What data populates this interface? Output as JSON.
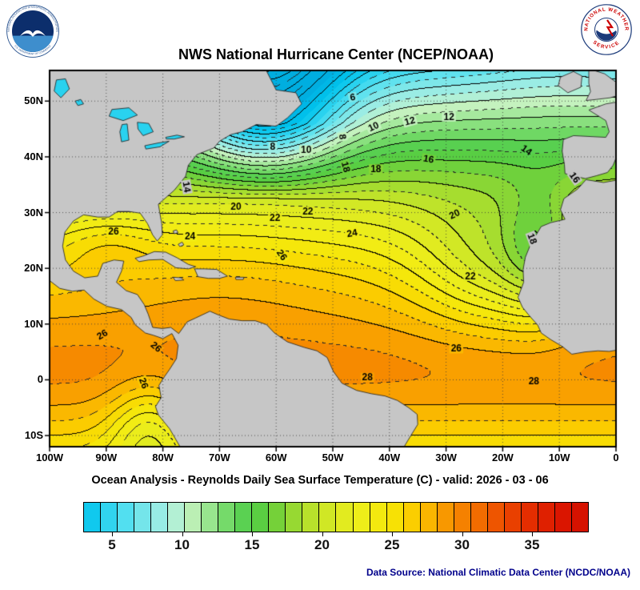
{
  "logos": {
    "noaa": {
      "ring_top": "NATIONAL OCEANIC AND ATMOSPHERIC ADMINISTRATION",
      "ring_bottom": "U.S. DEPARTMENT OF COMMERCE"
    },
    "nws": {
      "ring_top": "NATIONAL WEATHER",
      "ring_bottom": "SERVICE"
    }
  },
  "header": {
    "title": "NWS National Hurricane Center (NCEP/NOAA)"
  },
  "subtitle": "Ocean Analysis - Reynolds Daily Sea Surface Temperature (C) - valid: 2026 - 03 - 06",
  "footer": {
    "data_source": "Data Source: National Climatic Data Center (NCDC/NOAA)",
    "color": "#00008B"
  },
  "chart_data": {
    "type": "heatmap",
    "title": "NWS National Hurricane Center (NCEP/NOAA)",
    "subtitle": "Ocean Analysis - Reynolds Daily Sea Surface Temperature (C) - valid: 2026 - 03 - 06",
    "units": "C",
    "valid_date": "2026 - 03 - 06",
    "projection": {
      "lon_min": -100,
      "lon_max": 0,
      "lat_min": -12,
      "lat_max": 55.5
    },
    "grid_step_deg": 10,
    "contour_interval": 2,
    "x_axis": [
      {
        "label": "100W",
        "value": -100
      },
      {
        "label": "90W",
        "value": -90
      },
      {
        "label": "80W",
        "value": -80
      },
      {
        "label": "70W",
        "value": -70
      },
      {
        "label": "60W",
        "value": -60
      },
      {
        "label": "50W",
        "value": -50
      },
      {
        "label": "40W",
        "value": -40
      },
      {
        "label": "30W",
        "value": -30
      },
      {
        "label": "20W",
        "value": -20
      },
      {
        "label": "10W",
        "value": -10
      },
      {
        "label": "0",
        "value": 0
      }
    ],
    "y_axis": [
      {
        "label": "50N",
        "value": 50
      },
      {
        "label": "40N",
        "value": 40
      },
      {
        "label": "30N",
        "value": 30
      },
      {
        "label": "20N",
        "value": 20
      },
      {
        "label": "10N",
        "value": 10
      },
      {
        "label": "0",
        "value": 0
      },
      {
        "label": "10S",
        "value": -10
      }
    ],
    "contour_labels": [
      {
        "v": 6,
        "lon": -46.5,
        "lat": 50.7,
        "rot": -10
      },
      {
        "v": 10,
        "lon": -42.8,
        "lat": 45.4,
        "rot": -25
      },
      {
        "v": 12,
        "lon": -36.4,
        "lat": 46.4,
        "rot": -15
      },
      {
        "v": 12,
        "lon": -29.5,
        "lat": 47.2,
        "rot": 0
      },
      {
        "v": 8,
        "lon": -60.6,
        "lat": 41.8,
        "rot": 0
      },
      {
        "v": 10,
        "lon": -54.7,
        "lat": 41.2,
        "rot": 0
      },
      {
        "v": 8,
        "lon": -48.3,
        "lat": 43.6,
        "rot": 80
      },
      {
        "v": 18,
        "lon": -47.7,
        "lat": 38.2,
        "rot": 75
      },
      {
        "v": 18,
        "lon": -42.4,
        "lat": 37.8,
        "rot": 0
      },
      {
        "v": 16,
        "lon": -33.1,
        "lat": 39.6,
        "rot": 10
      },
      {
        "v": 14,
        "lon": -15.8,
        "lat": 41.2,
        "rot": 35
      },
      {
        "v": 16,
        "lon": -7.3,
        "lat": 36.3,
        "rot": 55
      },
      {
        "v": 14,
        "lon": -75.8,
        "lat": 34.6,
        "rot": 80
      },
      {
        "v": 20,
        "lon": -67.1,
        "lat": 31.0,
        "rot": 0
      },
      {
        "v": 22,
        "lon": -60.2,
        "lat": 29.0,
        "rot": 0
      },
      {
        "v": 22,
        "lon": -54.4,
        "lat": 30.2,
        "rot": 0
      },
      {
        "v": 20,
        "lon": -28.5,
        "lat": 29.7,
        "rot": -25
      },
      {
        "v": 18,
        "lon": -14.8,
        "lat": 25.3,
        "rot": 70
      },
      {
        "v": 26,
        "lon": -88.7,
        "lat": 26.6,
        "rot": 0
      },
      {
        "v": 24,
        "lon": -75.2,
        "lat": 25.7,
        "rot": 0
      },
      {
        "v": 24,
        "lon": -46.6,
        "lat": 26.3,
        "rot": -10
      },
      {
        "v": 26,
        "lon": -59.0,
        "lat": 22.4,
        "rot": 55
      },
      {
        "v": 22,
        "lon": -25.7,
        "lat": 18.6,
        "rot": 0
      },
      {
        "v": 26,
        "lon": -90.7,
        "lat": 8.1,
        "rot": -30
      },
      {
        "v": 26,
        "lon": -81.2,
        "lat": 5.9,
        "rot": 40
      },
      {
        "v": 26,
        "lon": -83.4,
        "lat": -0.6,
        "rot": 70
      },
      {
        "v": 26,
        "lon": -28.2,
        "lat": 5.6,
        "rot": 0
      },
      {
        "v": 28,
        "lon": -43.9,
        "lat": 0.4,
        "rot": 0
      },
      {
        "v": 28,
        "lon": -14.5,
        "lat": -0.3,
        "rot": 0
      }
    ],
    "colorbar": {
      "min": 3,
      "max": 39,
      "segments": 30,
      "ticks": [
        {
          "label": "5",
          "value": 5
        },
        {
          "label": "10",
          "value": 10
        },
        {
          "label": "15",
          "value": 15
        },
        {
          "label": "20",
          "value": 20
        },
        {
          "label": "25",
          "value": 25
        },
        {
          "label": "30",
          "value": 30
        },
        {
          "label": "35",
          "value": 35
        }
      ]
    },
    "palette": [
      [
        0,
        "#00AADD"
      ],
      [
        3,
        "#00C4EE"
      ],
      [
        6,
        "#52DFF0"
      ],
      [
        9,
        "#A8EFE2"
      ],
      [
        10.5,
        "#C4F2BE"
      ],
      [
        13,
        "#7ADC6E"
      ],
      [
        15,
        "#4CCC46"
      ],
      [
        17,
        "#7AD238"
      ],
      [
        19,
        "#B4E02C"
      ],
      [
        21,
        "#DCEA22"
      ],
      [
        23,
        "#F0EE18"
      ],
      [
        25,
        "#F6E406"
      ],
      [
        26.5,
        "#FBCC00"
      ],
      [
        28,
        "#FAAE00"
      ],
      [
        29,
        "#F79200"
      ],
      [
        31,
        "#F37000"
      ],
      [
        33,
        "#EC4A00"
      ],
      [
        35,
        "#E32A00"
      ],
      [
        37,
        "#DB1600"
      ],
      [
        39,
        "#D21000"
      ]
    ],
    "colors": {
      "land": "#C6C6C6",
      "coast": "#1A1A1A",
      "grid": "#3C3C3C",
      "frame": "#000000",
      "contour": "#000000",
      "lake_t": 4.5
    },
    "sst_model": {
      "base": {
        "t_eq": 28.6,
        "amp": 22.5,
        "p_ref": 5,
        "span": 50,
        "pow": 1.6,
        "south_coef": 0.012
      },
      "features": [
        {
          "amp": -11,
          "lon0": -62,
          "slon": 14,
          "ramp0": 32,
          "ramp1": 14
        },
        {
          "amp": -5,
          "lon0": -20,
          "slon": 15,
          "lat0": 20,
          "slat": 12
        },
        {
          "amp": -4,
          "lon0": -13.5,
          "slon": 6,
          "lat0": 23,
          "slat": 11
        },
        {
          "amp": 1.2,
          "lon0": -70,
          "slon": 20,
          "lat0": 20,
          "slat": 13
        },
        {
          "amp": 1.8,
          "lon0": -90,
          "slon": 9,
          "lat0": 24.5,
          "slat": 5.5
        },
        {
          "amp": 0.8,
          "lat0": 0,
          "slat": 7
        },
        {
          "amp": -4,
          "lon0": -82.5,
          "slon": 7,
          "lat0": -9,
          "slat": 9
        },
        {
          "amp": 1.5,
          "lon0": -8,
          "slon": 18,
          "ramp0": 42,
          "ramp1": 13
        }
      ]
    },
    "land": {
      "americas": [
        [
          -100,
          56
        ],
        [
          -62,
          56
        ],
        [
          -60,
          52
        ],
        [
          -56.5,
          51.5
        ],
        [
          -55.5,
          49.5
        ],
        [
          -58,
          47
        ],
        [
          -60,
          45.5
        ],
        [
          -63.5,
          45.8
        ],
        [
          -66,
          44.5
        ],
        [
          -68,
          44
        ],
        [
          -70,
          42.8
        ],
        [
          -71,
          41.6
        ],
        [
          -74,
          40.4
        ],
        [
          -75.5,
          38.5
        ],
        [
          -76,
          36.5
        ],
        [
          -78,
          34
        ],
        [
          -80.8,
          31.5
        ],
        [
          -80.2,
          28
        ],
        [
          -80.1,
          26
        ],
        [
          -81,
          24.9
        ],
        [
          -81.8,
          26
        ],
        [
          -82.7,
          28
        ],
        [
          -84,
          29.9
        ],
        [
          -86,
          30.2
        ],
        [
          -88,
          30.2
        ],
        [
          -89.5,
          29.2
        ],
        [
          -91.5,
          29.2
        ],
        [
          -94,
          29.6
        ],
        [
          -95.8,
          28.5
        ],
        [
          -97.3,
          26.5
        ],
        [
          -97.7,
          24
        ],
        [
          -97.2,
          21.5
        ],
        [
          -95.8,
          19.5
        ],
        [
          -93.8,
          18.3
        ],
        [
          -91.5,
          18.6
        ],
        [
          -90.6,
          20.9
        ],
        [
          -88.6,
          21.5
        ],
        [
          -86.9,
          21.3
        ],
        [
          -87.3,
          19.5
        ],
        [
          -88.2,
          17.5
        ],
        [
          -86.5,
          16
        ],
        [
          -84.5,
          15.3
        ],
        [
          -83.3,
          13.5
        ],
        [
          -82.6,
          11.8
        ],
        [
          -81.8,
          9.4
        ],
        [
          -80.1,
          9.2
        ],
        [
          -78.6,
          9.4
        ],
        [
          -77.2,
          8.3
        ],
        [
          -75.7,
          10.4
        ],
        [
          -74.2,
          11.1
        ],
        [
          -71.7,
          12.3
        ],
        [
          -70.1,
          11.6
        ],
        [
          -68.3,
          10.9
        ],
        [
          -66,
          10.6
        ],
        [
          -63.7,
          10.6
        ],
        [
          -61.7,
          9.9
        ],
        [
          -60.3,
          8.4
        ],
        [
          -58,
          6.8
        ],
        [
          -55,
          5.8
        ],
        [
          -52.8,
          5.2
        ],
        [
          -51,
          4
        ],
        [
          -49.9,
          1.5
        ],
        [
          -48.4,
          -0.6
        ],
        [
          -45.8,
          -1.9
        ],
        [
          -43.2,
          -2.5
        ],
        [
          -40.8,
          -2.9
        ],
        [
          -38.6,
          -3.7
        ],
        [
          -36.6,
          -5
        ],
        [
          -35.1,
          -6.2
        ],
        [
          -35,
          -8
        ],
        [
          -36.4,
          -10.3
        ],
        [
          -38,
          -13
        ],
        [
          -76.4,
          -13
        ],
        [
          -78.8,
          -8.8
        ],
        [
          -80.8,
          -6.3
        ],
        [
          -81.3,
          -4.8
        ],
        [
          -80.3,
          -3.2
        ],
        [
          -80.7,
          -1
        ],
        [
          -79.7,
          0.6
        ],
        [
          -78.8,
          1.9
        ],
        [
          -77.6,
          3.8
        ],
        [
          -77.3,
          6.2
        ],
        [
          -78.4,
          8.3
        ],
        [
          -80,
          7.4
        ],
        [
          -81.7,
          8
        ],
        [
          -83.1,
          8.4
        ],
        [
          -84.9,
          9.9
        ],
        [
          -85.6,
          11.2
        ],
        [
          -87.3,
          12.6
        ],
        [
          -89.9,
          13.2
        ],
        [
          -92.2,
          14.5
        ],
        [
          -93.9,
          16.1
        ],
        [
          -96,
          15.9
        ],
        [
          -98.2,
          16.4
        ],
        [
          -100,
          17.8
        ]
      ],
      "cuba": [
        [
          -84.9,
          21.8
        ],
        [
          -83.5,
          22.2
        ],
        [
          -81.5,
          23
        ],
        [
          -79.5,
          22.9
        ],
        [
          -77.5,
          21.9
        ],
        [
          -75.5,
          20.7
        ],
        [
          -74.2,
          20.3
        ],
        [
          -75.5,
          19.9
        ],
        [
          -77.7,
          20.1
        ],
        [
          -80,
          21.6
        ],
        [
          -82.5,
          21.5
        ],
        [
          -84.2,
          21.2
        ]
      ],
      "hispaniola": [
        [
          -74.4,
          19.9
        ],
        [
          -72.7,
          19.9
        ],
        [
          -70.5,
          19.8
        ],
        [
          -68.6,
          18.6
        ],
        [
          -70,
          18.2
        ],
        [
          -72,
          18.2
        ],
        [
          -73.8,
          18.5
        ]
      ],
      "jamaica": [
        [
          -78.2,
          18.4
        ],
        [
          -76.8,
          18.3
        ],
        [
          -76.3,
          17.9
        ],
        [
          -77.8,
          17.8
        ]
      ],
      "puerto_rico": [
        [
          -67.2,
          18.4
        ],
        [
          -65.7,
          18.4
        ],
        [
          -65.8,
          18
        ],
        [
          -67.1,
          18
        ]
      ],
      "bahamas_1": [
        [
          -78.2,
          26.7
        ],
        [
          -77.6,
          26.9
        ],
        [
          -77.3,
          26.4
        ],
        [
          -78,
          26.2
        ]
      ],
      "bahamas_2": [
        [
          -77.3,
          24.3
        ],
        [
          -76.6,
          24.7
        ],
        [
          -76.3,
          24.2
        ],
        [
          -77,
          23.9
        ]
      ],
      "iberia_france": [
        [
          0,
          49.8
        ],
        [
          -1.8,
          49.5
        ],
        [
          -4.8,
          48.4
        ],
        [
          -1.8,
          46.5
        ],
        [
          -1.2,
          44.5
        ],
        [
          -1.8,
          43.5
        ],
        [
          -7.5,
          43.8
        ],
        [
          -9.3,
          43.1
        ],
        [
          -9.5,
          41
        ],
        [
          -9.1,
          38.6
        ],
        [
          -9,
          37
        ],
        [
          -6.3,
          36.3
        ],
        [
          -5.4,
          36.1
        ],
        [
          -3.5,
          36.6
        ],
        [
          -1.5,
          37.2
        ],
        [
          -0.5,
          38.5
        ],
        [
          0,
          39.8
        ]
      ],
      "britain": [
        [
          0,
          53.4
        ],
        [
          -2,
          54.9
        ],
        [
          -4.8,
          55.8
        ],
        [
          -4.8,
          53.2
        ],
        [
          -4.5,
          51.7
        ],
        [
          -5.3,
          50.1
        ],
        [
          -3.5,
          50.3
        ],
        [
          -1,
          50.6
        ],
        [
          0,
          50.9
        ]
      ],
      "ireland": [
        [
          -9.8,
          54.3
        ],
        [
          -7.5,
          55.3
        ],
        [
          -6,
          54.5
        ],
        [
          -6.2,
          52.5
        ],
        [
          -8.5,
          51.5
        ],
        [
          -10.2,
          52.8
        ]
      ],
      "africa": [
        [
          0,
          35.8
        ],
        [
          -2.2,
          35.4
        ],
        [
          -5.3,
          35.9
        ],
        [
          -6.8,
          34.2
        ],
        [
          -9.2,
          32.5
        ],
        [
          -9.8,
          30.5
        ],
        [
          -9,
          28.8
        ],
        [
          -11.5,
          28.2
        ],
        [
          -13.2,
          27.5
        ],
        [
          -15,
          24.5
        ],
        [
          -16,
          22
        ],
        [
          -16.4,
          19.8
        ],
        [
          -16.3,
          17.5
        ],
        [
          -17.3,
          14.8
        ],
        [
          -16.5,
          13
        ],
        [
          -15.3,
          11.5
        ],
        [
          -13.8,
          9.8
        ],
        [
          -13.2,
          8.4
        ],
        [
          -11.5,
          7.2
        ],
        [
          -9.5,
          6
        ],
        [
          -7.8,
          4.6
        ],
        [
          -5.5,
          5
        ],
        [
          -3.2,
          5.2
        ],
        [
          -1.2,
          5.1
        ],
        [
          0,
          5.3
        ]
      ]
    },
    "lakes": {
      "superior": [
        [
          -89,
          48.5
        ],
        [
          -86,
          48.8
        ],
        [
          -84.5,
          47.5
        ],
        [
          -87,
          46.5
        ],
        [
          -89.5,
          47.3
        ]
      ],
      "michigan": [
        [
          -87.2,
          45.8
        ],
        [
          -86.3,
          45.9
        ],
        [
          -86,
          43
        ],
        [
          -87.3,
          42.7
        ],
        [
          -87.6,
          44.5
        ]
      ],
      "huron": [
        [
          -84.5,
          46.2
        ],
        [
          -82.5,
          46
        ],
        [
          -81.7,
          44.5
        ],
        [
          -83.5,
          43.8
        ],
        [
          -84.4,
          45
        ]
      ],
      "erie": [
        [
          -83.2,
          42
        ],
        [
          -80.8,
          42.5
        ],
        [
          -78.9,
          42.8
        ],
        [
          -80.5,
          41.8
        ],
        [
          -83,
          41.4
        ]
      ],
      "ontario": [
        [
          -79.5,
          43.5
        ],
        [
          -77.5,
          43.9
        ],
        [
          -76.2,
          43.6
        ],
        [
          -78,
          43.2
        ],
        [
          -79.4,
          43.2
        ]
      ],
      "winnipeg": [
        [
          -98.8,
          53.8
        ],
        [
          -97.2,
          54
        ],
        [
          -96.5,
          52.2
        ],
        [
          -98,
          50.6
        ],
        [
          -99.2,
          51.8
        ]
      ],
      "woods": [
        [
          -95.5,
          50
        ],
        [
          -94.5,
          50.3
        ],
        [
          -94,
          49.5
        ],
        [
          -95,
          49.2
        ]
      ]
    }
  }
}
